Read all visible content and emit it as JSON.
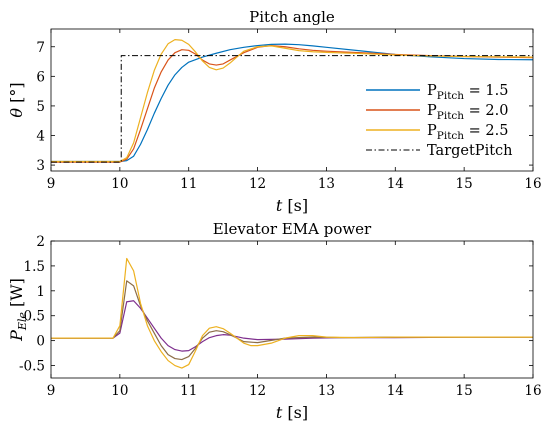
{
  "chart_data": [
    {
      "type": "line",
      "title": "Pitch angle",
      "xlabel_var": "t",
      "xlabel_unit": "[s]",
      "ylabel_var": "θ",
      "ylabel_unit": "[°]",
      "xlim": [
        9,
        16
      ],
      "ylim": [
        2.8,
        7.6
      ],
      "xticks": [
        9,
        10,
        11,
        12,
        13,
        14,
        15,
        16
      ],
      "yticks": [
        3,
        4,
        5,
        6,
        7
      ],
      "grid": false,
      "legend_position": "right",
      "series": [
        {
          "name_base": "P",
          "name_sub": "Pitch",
          "name_value": " = 1.5",
          "color": "#0072BD",
          "style": "solid",
          "x": [
            9,
            10,
            10.1,
            10.2,
            10.3,
            10.4,
            10.5,
            10.6,
            10.7,
            10.8,
            10.9,
            11.0,
            11.2,
            11.4,
            11.6,
            11.8,
            12.0,
            12.2,
            12.4,
            12.6,
            12.8,
            13.0,
            13.5,
            14.0,
            14.5,
            15.0,
            15.5,
            16.0
          ],
          "y": [
            3.12,
            3.12,
            3.15,
            3.3,
            3.7,
            4.2,
            4.75,
            5.25,
            5.7,
            6.05,
            6.3,
            6.48,
            6.65,
            6.78,
            6.9,
            6.98,
            7.04,
            7.08,
            7.09,
            7.07,
            7.03,
            6.98,
            6.86,
            6.74,
            6.66,
            6.6,
            6.57,
            6.56
          ]
        },
        {
          "name_base": "P",
          "name_sub": "Pitch",
          "name_value": " = 2.0",
          "color": "#D95319",
          "style": "solid",
          "x": [
            9,
            10,
            10.1,
            10.2,
            10.3,
            10.4,
            10.5,
            10.6,
            10.7,
            10.8,
            10.9,
            11.0,
            11.1,
            11.2,
            11.3,
            11.4,
            11.5,
            11.6,
            11.8,
            12.0,
            12.2,
            12.4,
            12.6,
            12.8,
            13.0,
            13.5,
            14.0,
            14.5,
            15.0,
            15.5,
            16.0
          ],
          "y": [
            3.1,
            3.1,
            3.2,
            3.55,
            4.2,
            4.9,
            5.6,
            6.15,
            6.55,
            6.8,
            6.9,
            6.88,
            6.75,
            6.55,
            6.42,
            6.38,
            6.42,
            6.55,
            6.8,
            6.98,
            7.04,
            7.0,
            6.93,
            6.88,
            6.85,
            6.8,
            6.74,
            6.7,
            6.67,
            6.65,
            6.63
          ]
        },
        {
          "name_base": "P",
          "name_sub": "Pitch",
          "name_value": " = 2.5",
          "color": "#EDB120",
          "style": "solid",
          "x": [
            9,
            10,
            10.1,
            10.2,
            10.3,
            10.4,
            10.5,
            10.6,
            10.7,
            10.8,
            10.9,
            11.0,
            11.1,
            11.2,
            11.3,
            11.4,
            11.5,
            11.6,
            11.7,
            11.8,
            12.0,
            12.2,
            12.4,
            12.6,
            12.8,
            13.0,
            13.5,
            14.0,
            14.5,
            15.0,
            15.5,
            16.0
          ],
          "y": [
            3.12,
            3.12,
            3.25,
            3.75,
            4.6,
            5.45,
            6.2,
            6.75,
            7.1,
            7.24,
            7.22,
            7.08,
            6.82,
            6.52,
            6.3,
            6.22,
            6.28,
            6.45,
            6.65,
            6.85,
            7.0,
            7.03,
            6.95,
            6.87,
            6.83,
            6.81,
            6.77,
            6.72,
            6.69,
            6.67,
            6.66,
            6.65
          ]
        },
        {
          "name_base": "TargetPitch",
          "name_sub": "",
          "name_value": "",
          "color": "#000000",
          "style": "dashdot",
          "x": [
            9,
            10.02,
            10.02,
            16
          ],
          "y": [
            3.1,
            3.1,
            6.7,
            6.7
          ]
        }
      ]
    },
    {
      "type": "line",
      "title": "Elevator EMA power",
      "xlabel_var": "t",
      "xlabel_unit": "[s]",
      "ylabel_var": "P",
      "ylabel_sub": "Ele",
      "ylabel_unit": "[W]",
      "xlim": [
        9,
        16
      ],
      "ylim": [
        -0.75,
        2
      ],
      "xticks": [
        9,
        10,
        11,
        12,
        13,
        14,
        15,
        16
      ],
      "yticks": [
        -0.5,
        0,
        0.5,
        1,
        1.5,
        2
      ],
      "grid": false,
      "series": [
        {
          "color": "#7E2F8E",
          "x": [
            9,
            9.9,
            10.0,
            10.1,
            10.2,
            10.3,
            10.4,
            10.5,
            10.6,
            10.7,
            10.8,
            10.9,
            11.0,
            11.1,
            11.2,
            11.3,
            11.4,
            11.5,
            11.6,
            11.8,
            12.0,
            12.4,
            12.8,
            13.2,
            14.0,
            15.0,
            16.0
          ],
          "y": [
            0.05,
            0.05,
            0.15,
            0.78,
            0.8,
            0.65,
            0.45,
            0.25,
            0.05,
            -0.1,
            -0.18,
            -0.21,
            -0.2,
            -0.12,
            -0.02,
            0.06,
            0.1,
            0.12,
            0.11,
            0.05,
            0.02,
            0.03,
            0.05,
            0.06,
            0.06,
            0.07,
            0.07
          ]
        },
        {
          "color": "#8C6D46",
          "x": [
            9,
            9.9,
            10.0,
            10.1,
            10.2,
            10.3,
            10.4,
            10.5,
            10.6,
            10.7,
            10.8,
            10.9,
            11.0,
            11.1,
            11.2,
            11.3,
            11.4,
            11.5,
            11.6,
            11.7,
            11.8,
            12.0,
            12.4,
            12.8,
            13.2,
            14.0,
            15.0,
            16.0
          ],
          "y": [
            0.05,
            0.05,
            0.2,
            1.2,
            1.1,
            0.7,
            0.4,
            0.15,
            -0.1,
            -0.28,
            -0.36,
            -0.38,
            -0.32,
            -0.15,
            0.05,
            0.17,
            0.2,
            0.18,
            0.12,
            0.05,
            -0.02,
            -0.04,
            0.05,
            0.07,
            0.06,
            0.07,
            0.07,
            0.07
          ]
        },
        {
          "color": "#EDB120",
          "x": [
            9,
            9.9,
            10.0,
            10.1,
            10.2,
            10.3,
            10.4,
            10.5,
            10.6,
            10.7,
            10.8,
            10.9,
            11.0,
            11.1,
            11.2,
            11.3,
            11.4,
            11.5,
            11.6,
            11.7,
            11.8,
            11.9,
            12.0,
            12.2,
            12.4,
            12.6,
            12.8,
            13.0,
            13.4,
            14.0,
            15.0,
            16.0
          ],
          "y": [
            0.05,
            0.05,
            0.3,
            1.65,
            1.4,
            0.75,
            0.3,
            0.0,
            -0.22,
            -0.4,
            -0.5,
            -0.55,
            -0.48,
            -0.2,
            0.1,
            0.25,
            0.28,
            0.24,
            0.15,
            0.05,
            -0.05,
            -0.1,
            -0.1,
            -0.05,
            0.05,
            0.1,
            0.1,
            0.07,
            0.06,
            0.07,
            0.07,
            0.07
          ]
        }
      ]
    }
  ]
}
